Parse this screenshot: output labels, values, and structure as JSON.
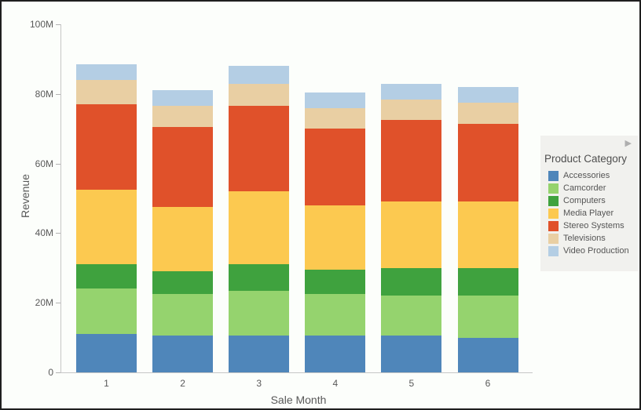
{
  "chart_data": {
    "type": "bar",
    "stacked": true,
    "xlabel": "Sale Month",
    "ylabel": "Revenue",
    "categories": [
      "1",
      "2",
      "3",
      "4",
      "5",
      "6"
    ],
    "y_ticks": [
      "0",
      "20M",
      "40M",
      "60M",
      "80M",
      "100M"
    ],
    "ylim": [
      0,
      100
    ],
    "values_unit": "millions",
    "grid": false,
    "legend_position": "right",
    "series": [
      {
        "name": "Accessories",
        "color": "#4f86ba",
        "values": [
          11,
          10.5,
          10.5,
          10.5,
          10.5,
          10
        ]
      },
      {
        "name": "Camcorder",
        "color": "#95d36e",
        "values": [
          13,
          12,
          13,
          12,
          11.5,
          12
        ]
      },
      {
        "name": "Computers",
        "color": "#3fa23e",
        "values": [
          7,
          6.5,
          7.5,
          7,
          8,
          8
        ]
      },
      {
        "name": "Media Player",
        "color": "#fcc950",
        "values": [
          21.5,
          18.5,
          21,
          18.5,
          19,
          19
        ]
      },
      {
        "name": "Stereo Systems",
        "color": "#e0512a",
        "values": [
          24.5,
          23,
          24.5,
          22,
          23.5,
          22.5
        ]
      },
      {
        "name": "Televisions",
        "color": "#e9cfa3",
        "values": [
          7,
          6,
          6.5,
          6,
          6,
          6
        ]
      },
      {
        "name": "Video Production",
        "color": "#b4cee4",
        "values": [
          4.5,
          4.5,
          5,
          4.5,
          4.5,
          4.5
        ]
      }
    ],
    "totals": [
      88.5,
      81,
      88,
      80.5,
      83,
      82
    ]
  },
  "legend": {
    "title": "Product Category",
    "expand_icon": "▶"
  },
  "colors": {
    "background": "#fcfefb",
    "frame_border": "#1f1f1f",
    "axis_line": "#c6c6c6",
    "text": "#595959",
    "legend_background": "#f1f1ee"
  }
}
